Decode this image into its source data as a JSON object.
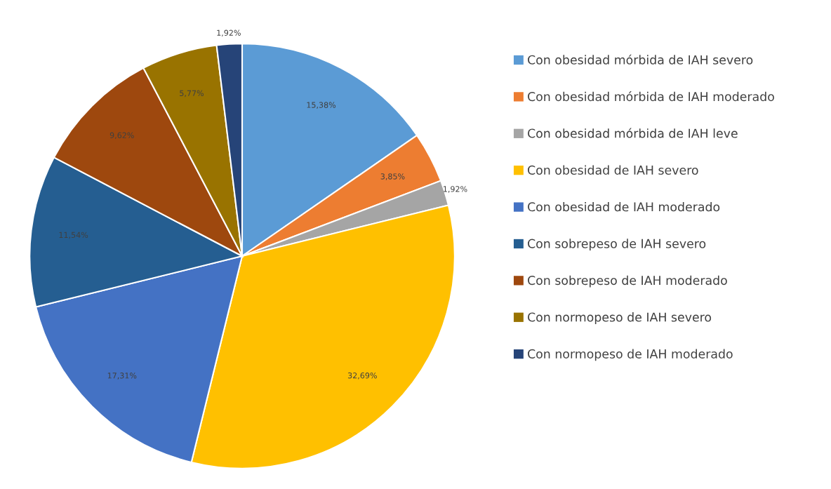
{
  "chart_data": {
    "type": "pie",
    "categories": [
      "Con obesidad mórbida de IAH severo",
      "Con obesidad mórbida de IAH moderado",
      "Con obesidad mórbida de IAH leve",
      "Con obesidad de IAH severo",
      "Con obesidad de IAH moderado",
      "Con sobrepeso de IAH severo",
      "Con sobrepeso de IAH moderado",
      "Con normopeso de IAH severo",
      "Con normopeso de IAH moderado"
    ],
    "values": [
      15.38,
      3.85,
      1.92,
      32.69,
      17.31,
      11.54,
      9.62,
      5.77,
      1.92
    ],
    "value_labels": [
      "15,38%",
      "3,85%",
      "1,92%",
      "32,69%",
      "17,31%",
      "11,54%",
      "9,62%",
      "5,77%",
      "1,92%"
    ],
    "colors": [
      "#5b9bd5",
      "#ed7d31",
      "#a5a5a5",
      "#ffc000",
      "#4472c4",
      "#255e91",
      "#9e480e",
      "#997300",
      "#264478"
    ],
    "legend": "right"
  }
}
